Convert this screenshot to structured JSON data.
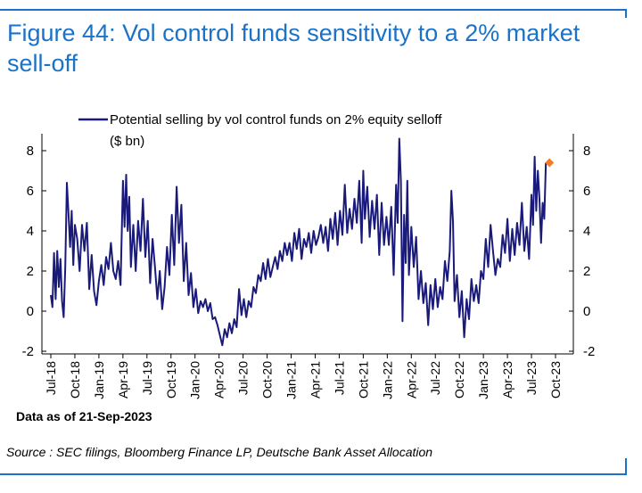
{
  "header": {
    "title": "Figure 44: Vol control funds sensitivity to a 2% market sell-off"
  },
  "footer": {
    "source": "Source : SEC filings, Bloomberg Finance LP, Deutsche Bank Asset Allocation"
  },
  "colors": {
    "accent": "#1a73c8",
    "series": "#1a1a7a",
    "marker": "#f07c2a"
  },
  "chart_data": {
    "type": "line",
    "title": "Figure 44: Vol control funds sensitivity to a 2% market sell-off",
    "legend": [
      "Potential selling by vol control funds on 2% equity selloff",
      "($ bn)"
    ],
    "legend_position": "top",
    "ylabel": "$ bn",
    "ylim": [
      -2,
      9
    ],
    "yticks": [
      "8",
      "6",
      "4",
      "2",
      "0",
      "-2"
    ],
    "ytick_values": [
      8,
      6,
      4,
      2,
      0,
      -2
    ],
    "xlim": [
      0,
      63
    ],
    "xticks": [
      "Jul-18",
      "Oct-18",
      "Jan-19",
      "Apr-19",
      "Jul-19",
      "Oct-19",
      "Jan-20",
      "Apr-20",
      "Jul-20",
      "Oct-20",
      "Jan-21",
      "Apr-21",
      "Jul-21",
      "Oct-21",
      "Jan-22",
      "Apr-22",
      "Jul-22",
      "Oct-22",
      "Jan-23",
      "Apr-23",
      "Jul-23",
      "Oct-23"
    ],
    "xtick_positions": [
      0,
      3,
      6,
      9,
      12,
      15,
      18,
      21,
      24,
      27,
      30,
      33,
      36,
      39,
      42,
      45,
      48,
      51,
      54,
      57,
      60,
      63
    ],
    "note": "Data as of 21-Sep-2023",
    "series": [
      {
        "name": "Potential selling by vol control funds on 2% equity selloff ($ bn)",
        "points": [
          [
            0.0,
            0.8
          ],
          [
            0.2,
            0.2
          ],
          [
            0.4,
            2.9
          ],
          [
            0.6,
            0.6
          ],
          [
            0.8,
            3.0
          ],
          [
            1.0,
            1.2
          ],
          [
            1.2,
            2.6
          ],
          [
            1.4,
            0.5
          ],
          [
            1.6,
            -0.3
          ],
          [
            1.8,
            2.2
          ],
          [
            2.0,
            6.4
          ],
          [
            2.2,
            4.9
          ],
          [
            2.4,
            3.2
          ],
          [
            2.6,
            5.0
          ],
          [
            2.8,
            2.3
          ],
          [
            3.0,
            4.3
          ],
          [
            3.3,
            3.6
          ],
          [
            3.6,
            2.0
          ],
          [
            3.9,
            4.3
          ],
          [
            4.2,
            3.0
          ],
          [
            4.5,
            4.4
          ],
          [
            4.8,
            1.1
          ],
          [
            5.1,
            2.8
          ],
          [
            5.4,
            1.0
          ],
          [
            5.7,
            0.3
          ],
          [
            6.0,
            1.5
          ],
          [
            6.3,
            2.3
          ],
          [
            6.6,
            1.3
          ],
          [
            6.9,
            2.7
          ],
          [
            7.2,
            2.1
          ],
          [
            7.5,
            3.4
          ],
          [
            7.8,
            2.0
          ],
          [
            8.1,
            1.6
          ],
          [
            8.4,
            2.5
          ],
          [
            8.7,
            1.3
          ],
          [
            9.0,
            6.5
          ],
          [
            9.2,
            4.2
          ],
          [
            9.4,
            6.8
          ],
          [
            9.6,
            4.0
          ],
          [
            9.8,
            5.7
          ],
          [
            10.0,
            2.2
          ],
          [
            10.3,
            4.3
          ],
          [
            10.6,
            2.0
          ],
          [
            10.9,
            4.5
          ],
          [
            11.2,
            3.0
          ],
          [
            11.5,
            5.6
          ],
          [
            11.8,
            2.7
          ],
          [
            12.1,
            4.5
          ],
          [
            12.4,
            1.4
          ],
          [
            12.7,
            3.6
          ],
          [
            13.0,
            2.2
          ],
          [
            13.3,
            0.6
          ],
          [
            13.6,
            2.0
          ],
          [
            13.9,
            0.1
          ],
          [
            14.2,
            1.2
          ],
          [
            14.5,
            3.2
          ],
          [
            14.8,
            1.8
          ],
          [
            15.1,
            4.8
          ],
          [
            15.4,
            2.3
          ],
          [
            15.7,
            6.2
          ],
          [
            16.0,
            3.4
          ],
          [
            16.3,
            5.3
          ],
          [
            16.6,
            1.5
          ],
          [
            16.9,
            3.4
          ],
          [
            17.2,
            0.8
          ],
          [
            17.5,
            1.9
          ],
          [
            17.8,
            0.2
          ],
          [
            18.1,
            1.1
          ],
          [
            18.4,
            -0.1
          ],
          [
            18.7,
            0.5
          ],
          [
            19.0,
            0.2
          ],
          [
            19.3,
            0.6
          ],
          [
            19.6,
            0.0
          ],
          [
            19.9,
            0.4
          ],
          [
            20.2,
            -0.4
          ],
          [
            20.5,
            -0.3
          ],
          [
            20.8,
            -0.7
          ],
          [
            21.1,
            -1.2
          ],
          [
            21.4,
            -1.7
          ],
          [
            21.7,
            -0.9
          ],
          [
            22.0,
            -1.3
          ],
          [
            22.3,
            -0.6
          ],
          [
            22.6,
            -1.1
          ],
          [
            22.9,
            -0.4
          ],
          [
            23.2,
            -0.8
          ],
          [
            23.5,
            1.1
          ],
          [
            23.8,
            -0.2
          ],
          [
            24.1,
            0.6
          ],
          [
            24.4,
            -0.3
          ],
          [
            24.7,
            0.5
          ],
          [
            25.0,
            0.2
          ],
          [
            25.3,
            1.2
          ],
          [
            25.6,
            0.9
          ],
          [
            25.9,
            1.8
          ],
          [
            26.2,
            1.5
          ],
          [
            26.5,
            2.4
          ],
          [
            26.8,
            1.6
          ],
          [
            27.1,
            2.6
          ],
          [
            27.4,
            1.7
          ],
          [
            27.7,
            2.2
          ],
          [
            28.0,
            2.7
          ],
          [
            28.3,
            2.1
          ],
          [
            28.6,
            3.0
          ],
          [
            28.9,
            2.5
          ],
          [
            29.2,
            3.4
          ],
          [
            29.5,
            2.8
          ],
          [
            29.8,
            3.4
          ],
          [
            30.1,
            2.5
          ],
          [
            30.4,
            3.9
          ],
          [
            30.7,
            3.1
          ],
          [
            31.0,
            4.1
          ],
          [
            31.3,
            2.6
          ],
          [
            31.6,
            3.6
          ],
          [
            31.9,
            3.2
          ],
          [
            32.2,
            3.9
          ],
          [
            32.5,
            2.9
          ],
          [
            32.8,
            4.0
          ],
          [
            33.1,
            3.3
          ],
          [
            33.4,
            3.7
          ],
          [
            33.7,
            4.3
          ],
          [
            34.0,
            3.4
          ],
          [
            34.3,
            4.2
          ],
          [
            34.6,
            3.0
          ],
          [
            34.9,
            4.6
          ],
          [
            35.2,
            3.6
          ],
          [
            35.5,
            4.9
          ],
          [
            35.8,
            3.3
          ],
          [
            36.1,
            5.0
          ],
          [
            36.4,
            3.8
          ],
          [
            36.7,
            6.3
          ],
          [
            37.0,
            3.9
          ],
          [
            37.3,
            5.1
          ],
          [
            37.6,
            4.1
          ],
          [
            37.9,
            5.6
          ],
          [
            38.2,
            4.4
          ],
          [
            38.5,
            6.5
          ],
          [
            38.8,
            3.4
          ],
          [
            39.0,
            7.0
          ],
          [
            39.2,
            4.6
          ],
          [
            39.5,
            6.2
          ],
          [
            39.8,
            3.7
          ],
          [
            40.1,
            5.5
          ],
          [
            40.4,
            4.1
          ],
          [
            40.7,
            5.8
          ],
          [
            41.0,
            2.8
          ],
          [
            41.3,
            5.4
          ],
          [
            41.6,
            3.3
          ],
          [
            41.9,
            4.7
          ],
          [
            42.2,
            3.3
          ],
          [
            42.5,
            5.2
          ],
          [
            42.8,
            1.8
          ],
          [
            43.1,
            6.3
          ],
          [
            43.3,
            4.4
          ],
          [
            43.5,
            8.6
          ],
          [
            43.7,
            6.5
          ],
          [
            43.9,
            -0.5
          ],
          [
            44.1,
            4.8
          ],
          [
            44.3,
            2.4
          ],
          [
            44.5,
            6.5
          ],
          [
            44.7,
            1.8
          ],
          [
            45.0,
            4.2
          ],
          [
            45.3,
            2.2
          ],
          [
            45.6,
            3.7
          ],
          [
            45.9,
            0.6
          ],
          [
            46.2,
            2.0
          ],
          [
            46.5,
            0.4
          ],
          [
            46.8,
            1.4
          ],
          [
            47.1,
            -0.7
          ],
          [
            47.4,
            1.3
          ],
          [
            47.7,
            0.1
          ],
          [
            48.0,
            1.6
          ],
          [
            48.3,
            0.2
          ],
          [
            48.6,
            1.2
          ],
          [
            48.9,
            0.6
          ],
          [
            49.2,
            2.5
          ],
          [
            49.5,
            1.5
          ],
          [
            49.8,
            3.0
          ],
          [
            50.0,
            6.0
          ],
          [
            50.2,
            4.5
          ],
          [
            50.4,
            0.5
          ],
          [
            50.7,
            1.8
          ],
          [
            51.0,
            -0.3
          ],
          [
            51.3,
            1.0
          ],
          [
            51.6,
            -1.3
          ],
          [
            51.9,
            0.6
          ],
          [
            52.2,
            -0.4
          ],
          [
            52.5,
            1.6
          ],
          [
            52.8,
            0.5
          ],
          [
            53.1,
            1.3
          ],
          [
            53.4,
            0.4
          ],
          [
            53.7,
            2.0
          ],
          [
            54.0,
            1.6
          ],
          [
            54.3,
            3.6
          ],
          [
            54.6,
            2.2
          ],
          [
            54.9,
            4.3
          ],
          [
            55.2,
            3.0
          ],
          [
            55.5,
            1.8
          ],
          [
            55.8,
            2.6
          ],
          [
            56.1,
            2.2
          ],
          [
            56.4,
            3.8
          ],
          [
            56.7,
            2.9
          ],
          [
            57.0,
            4.6
          ],
          [
            57.3,
            2.5
          ],
          [
            57.6,
            4.1
          ],
          [
            57.9,
            2.8
          ],
          [
            58.2,
            4.4
          ],
          [
            58.5,
            3.3
          ],
          [
            58.8,
            5.4
          ],
          [
            59.1,
            3.0
          ],
          [
            59.4,
            4.2
          ],
          [
            59.7,
            2.6
          ],
          [
            60.0,
            5.8
          ],
          [
            60.2,
            4.3
          ],
          [
            60.4,
            7.7
          ],
          [
            60.6,
            5.0
          ],
          [
            60.8,
            7.0
          ],
          [
            61.0,
            5.6
          ],
          [
            61.2,
            3.4
          ],
          [
            61.4,
            5.4
          ],
          [
            61.6,
            4.6
          ],
          [
            61.8,
            7.4
          ]
        ]
      }
    ],
    "highlight": {
      "x": 61.8,
      "y": 7.4
    }
  }
}
